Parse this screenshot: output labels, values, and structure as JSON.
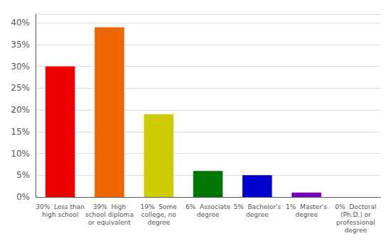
{
  "chart_data": {
    "type": "bar",
    "categories": [
      "30%  Less than\nhigh school",
      "39%  High\nschool diploma\nor equivalent",
      "19%  Some\ncollege, no\ndegree",
      "6%  Associate\ndegree",
      "5%  Bachelor's\ndegree",
      "1%  Master's\ndegree",
      "0%  Doctoral\n(Ph.D.) or\nprofessional\ndegree"
    ],
    "values": [
      30,
      39,
      19,
      6,
      5,
      1,
      0
    ],
    "colors": [
      "#ee0000",
      "#ee6600",
      "#cccc00",
      "#007700",
      "#0000cc",
      "#7700bb",
      "#ee00ee"
    ],
    "ylim": [
      0,
      42
    ],
    "yticks": [
      {
        "value": 0,
        "label": "0%"
      },
      {
        "value": 5,
        "label": "5%"
      },
      {
        "value": 10,
        "label": "10%"
      },
      {
        "value": 15,
        "label": "15%"
      },
      {
        "value": 20,
        "label": "20%"
      },
      {
        "value": 25,
        "label": "25%"
      },
      {
        "value": 30,
        "label": "30%"
      },
      {
        "value": 35,
        "label": "35%"
      },
      {
        "value": 40,
        "label": "40%"
      }
    ],
    "grid": true
  }
}
